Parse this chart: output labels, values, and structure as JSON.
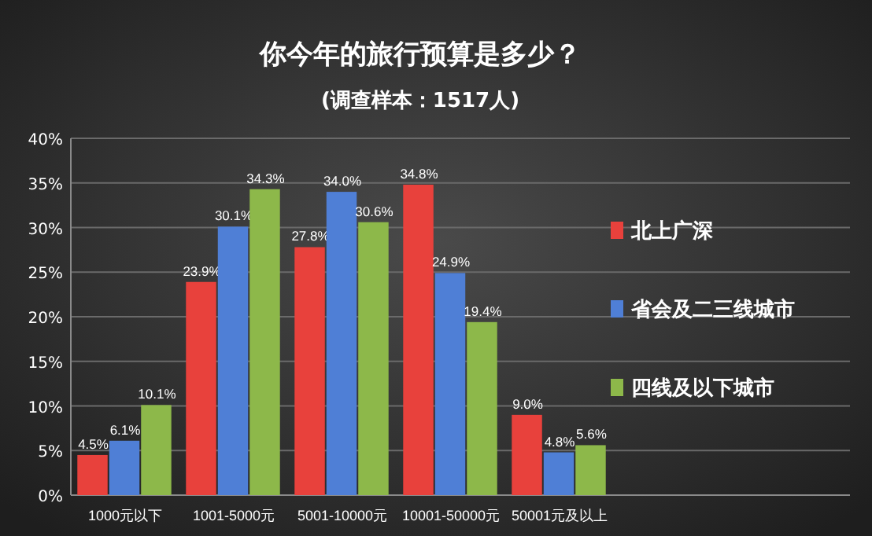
{
  "chart_data": {
    "type": "bar",
    "title": "你今年的旅行预算是多少？",
    "subtitle": "(调查样本：1517人)",
    "categories": [
      "1000元以下",
      "1001-5000元",
      "5001-10000元",
      "10001-50000元",
      "50001元及以上"
    ],
    "series": [
      {
        "name": "北上广深",
        "color": "#e8413c",
        "values": [
          4.5,
          23.9,
          27.8,
          34.8,
          9.0
        ],
        "value_labels": [
          "4.5%",
          "23.9%",
          "27.8%",
          "34.8%",
          "9.0%"
        ]
      },
      {
        "name": "省会及二三线城市",
        "color": "#4f7fd6",
        "values": [
          6.1,
          30.1,
          34.0,
          24.9,
          4.8
        ],
        "value_labels": [
          "6.1%",
          "30.1%",
          "34.0%",
          "24.9%",
          "4.8%"
        ]
      },
      {
        "name": "四线及以下城市",
        "color": "#8db84a",
        "values": [
          10.1,
          34.3,
          30.6,
          19.4,
          5.6
        ],
        "value_labels": [
          "10.1%",
          "34.3%",
          "30.6%",
          "19.4%",
          "5.6%"
        ]
      }
    ],
    "ylim": [
      0,
      40
    ],
    "yticks": [
      {
        "value": 0,
        "label": "0%"
      },
      {
        "value": 5,
        "label": "5%"
      },
      {
        "value": 10,
        "label": "10%"
      },
      {
        "value": 15,
        "label": "15%"
      },
      {
        "value": 20,
        "label": "20%"
      },
      {
        "value": 25,
        "label": "25%"
      },
      {
        "value": 30,
        "label": "30%"
      },
      {
        "value": 35,
        "label": "35%"
      },
      {
        "value": 40,
        "label": "40%"
      }
    ],
    "grid": "y",
    "legend": "right"
  }
}
